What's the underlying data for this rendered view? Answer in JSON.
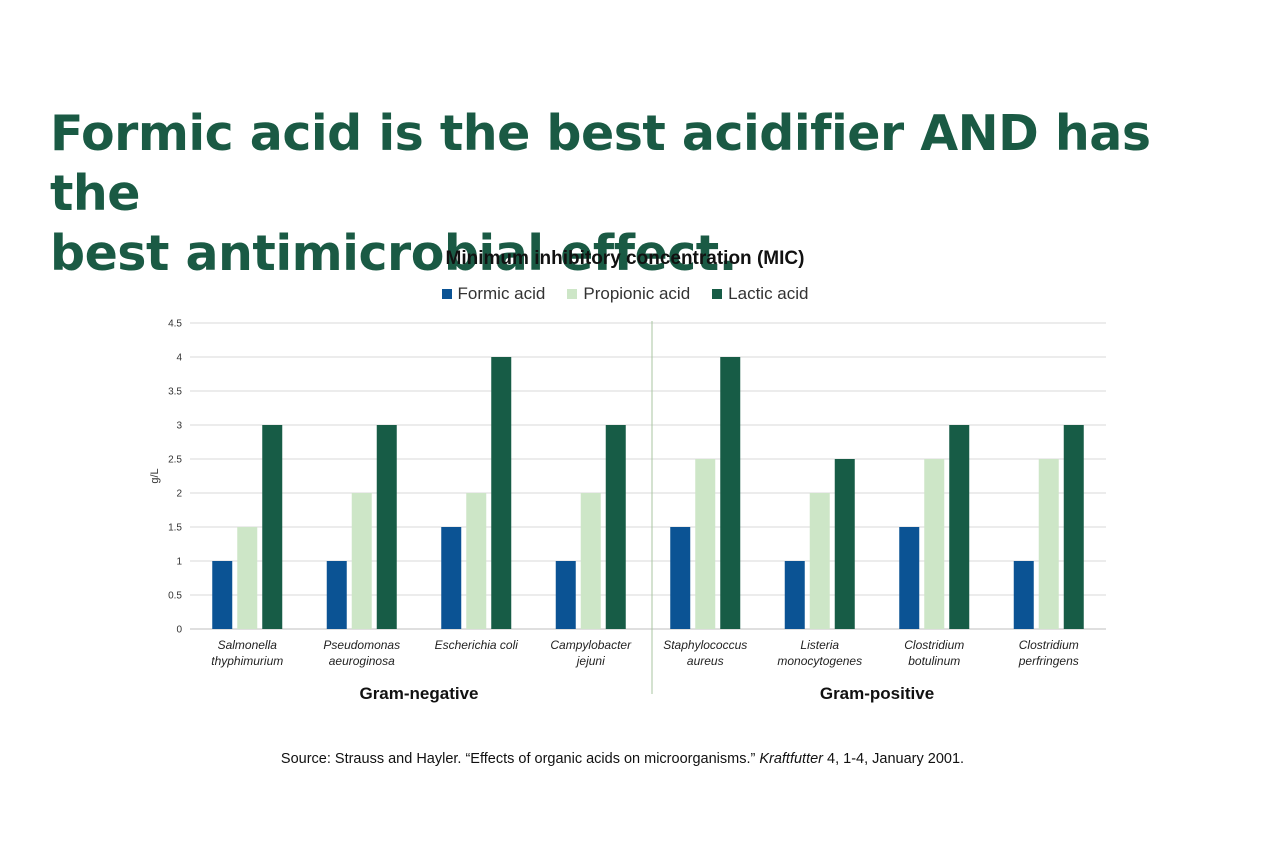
{
  "slide": {
    "title_line1": "Formic acid is the best acidifier AND has the",
    "title_line2": "best antimicrobial effect."
  },
  "colors": {
    "title": "#1a5a44",
    "formic": "#0b5394",
    "propionic": "#cde6c7",
    "lactic": "#175c46",
    "grid": "#d9d9d9",
    "divider": "#a9c6a0"
  },
  "chart_data": {
    "type": "bar",
    "title": "Minimum inhibitory concentration (MIC)",
    "ylabel": "g/L",
    "xlabel": "",
    "ylim": [
      0,
      4.5
    ],
    "yticks": [
      "0",
      "0.5",
      "1",
      "1.5",
      "2",
      "2.5",
      "3",
      "3.5",
      "4",
      "4.5"
    ],
    "grid": true,
    "legend_position": "top-center",
    "categories": [
      [
        "Salmonella",
        "thyphimurium"
      ],
      [
        "Pseudomonas",
        "aeuroginosa"
      ],
      [
        "Escherichia coli"
      ],
      [
        "Campylobacter",
        "jejuni"
      ],
      [
        "Staphylococcus",
        "aureus"
      ],
      [
        "Listeria",
        "monocytogenes"
      ],
      [
        "Clostridium",
        "botulinum"
      ],
      [
        "Clostridium",
        "perfringens"
      ]
    ],
    "groups": [
      {
        "label": "Gram-negative",
        "categories": [
          0,
          1,
          2,
          3
        ]
      },
      {
        "label": "Gram-positive",
        "categories": [
          4,
          5,
          6,
          7
        ]
      }
    ],
    "series": [
      {
        "name": "Formic acid",
        "color": "#0b5394",
        "values": [
          1,
          1,
          1.5,
          1,
          1.5,
          1,
          1.5,
          1
        ]
      },
      {
        "name": "Propionic acid",
        "color": "#cde6c7",
        "values": [
          1.5,
          2,
          2,
          2,
          2.5,
          2,
          2.5,
          2.5
        ]
      },
      {
        "name": "Lactic acid",
        "color": "#175c46",
        "values": [
          3,
          3,
          4,
          3,
          4,
          2.5,
          3,
          3
        ]
      }
    ]
  },
  "source": {
    "prefix": "Source: Strauss and Hayler. “Effects of organic acids on microorganisms.” ",
    "journal": "Kraftfutter",
    "suffix": " 4, 1-4, January 2001."
  }
}
